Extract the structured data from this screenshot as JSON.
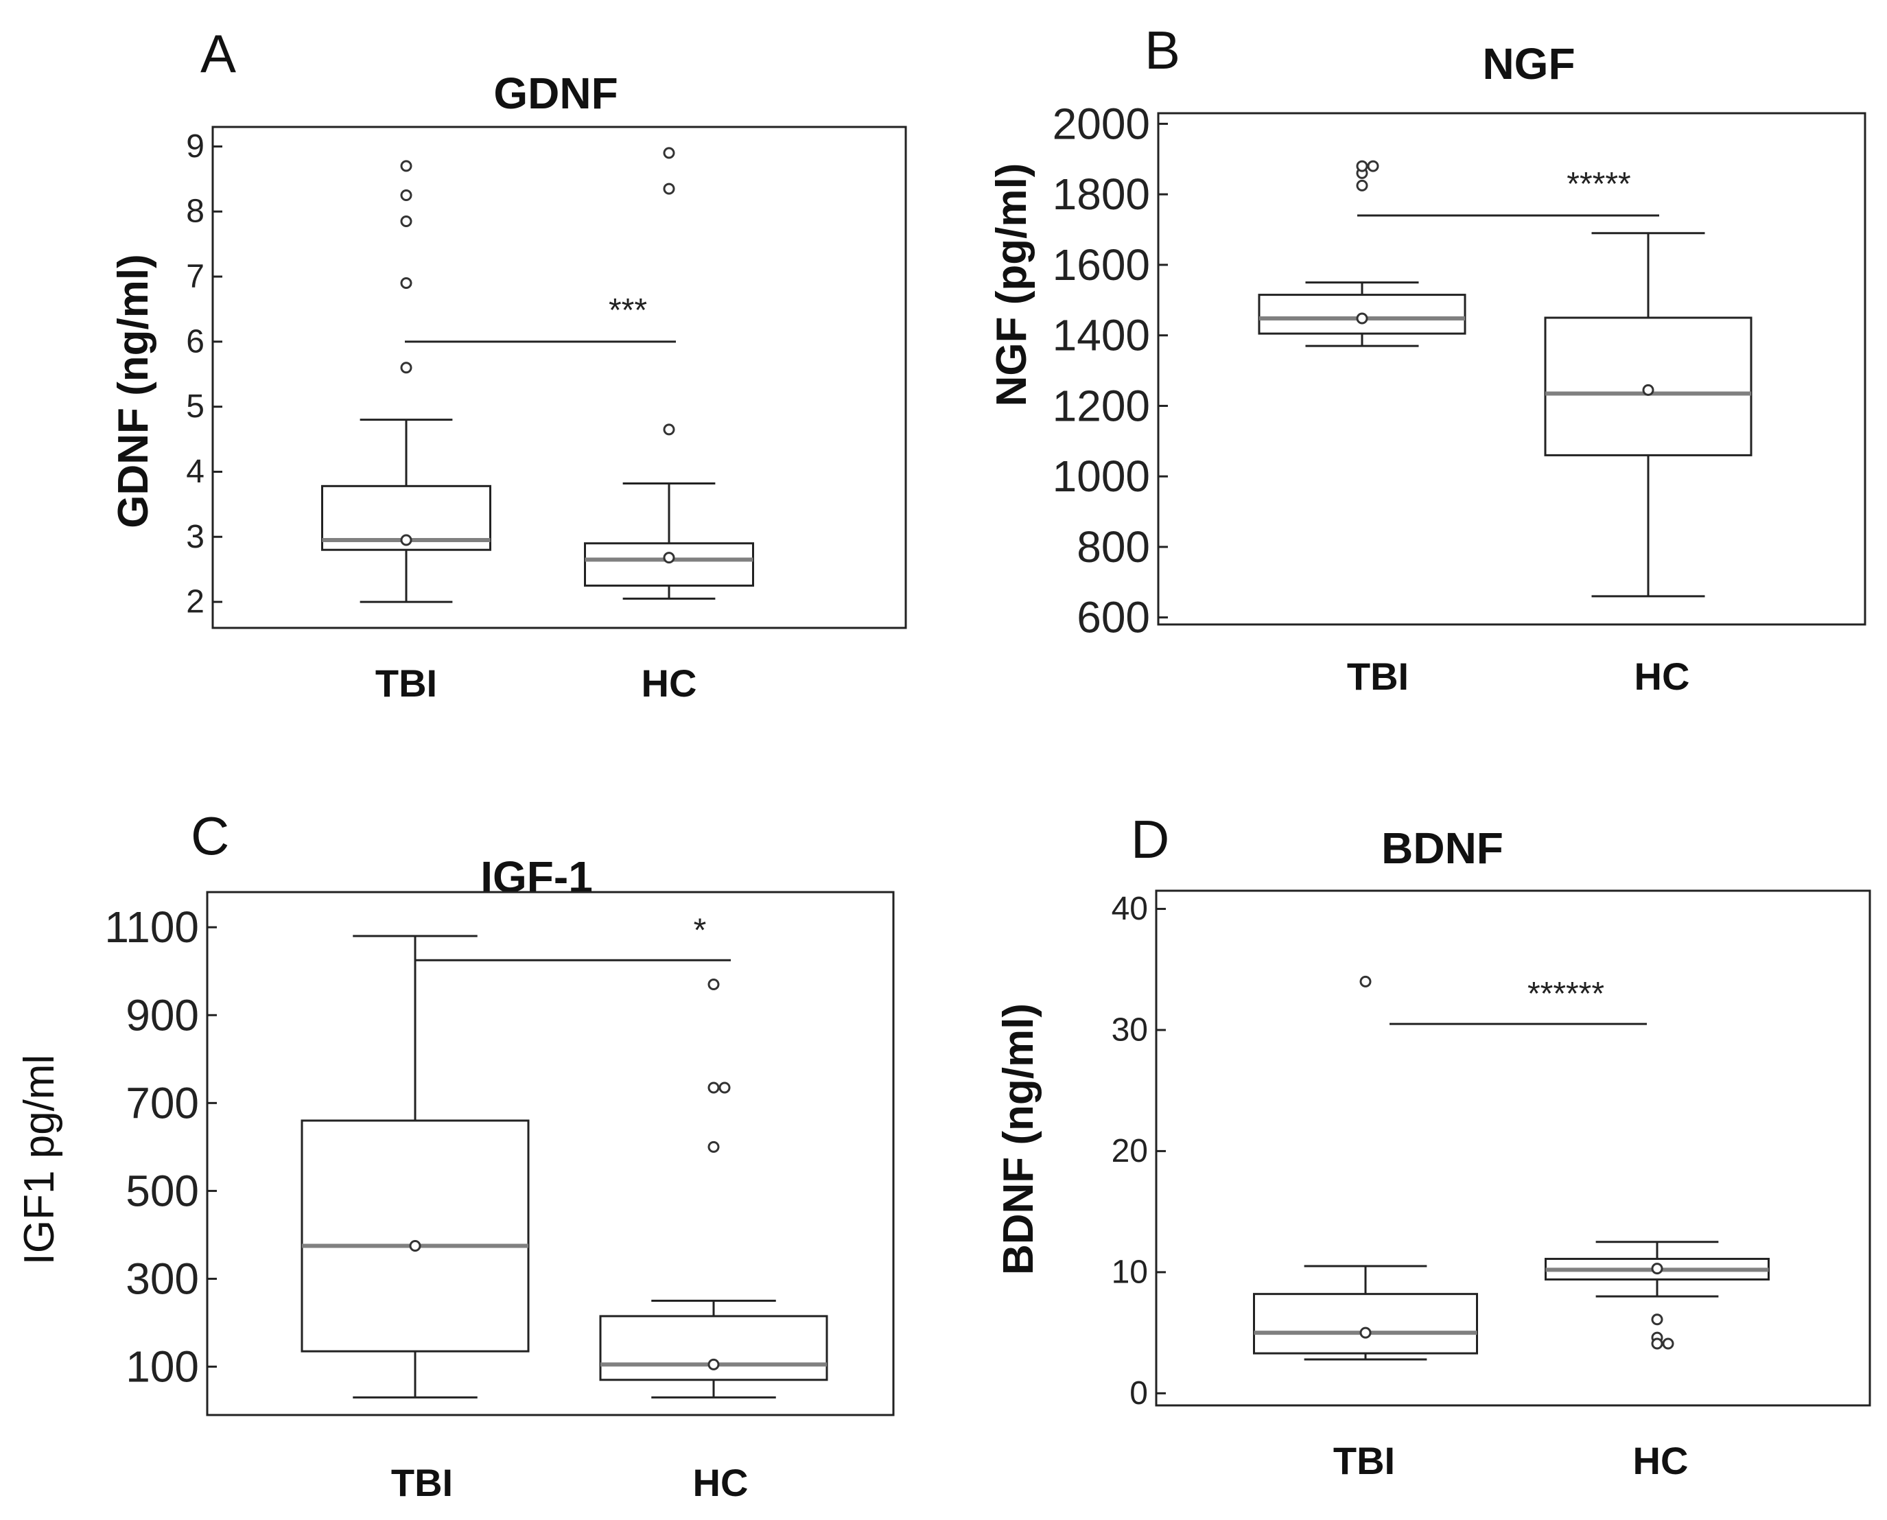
{
  "figure": {
    "panels": [
      "A",
      "B",
      "C",
      "D"
    ]
  },
  "chart_data": [
    {
      "panel": "A",
      "type": "box",
      "title": "GDNF",
      "ylabel": "GDNF (ng/ml)",
      "xlabel": "",
      "categories": [
        "TBI",
        "HC"
      ],
      "ylim": [
        1.6,
        9.3
      ],
      "yticks": [
        2,
        3,
        4,
        5,
        6,
        7,
        8,
        9
      ],
      "boxes": [
        {
          "name": "TBI",
          "whisker_low": 2.0,
          "q1": 2.8,
          "median": 2.95,
          "q3": 3.78,
          "whisker_high": 4.8,
          "mean": 2.95,
          "outliers": [
            5.6,
            6.9,
            7.85,
            8.25,
            8.7
          ]
        },
        {
          "name": "HC",
          "whisker_low": 2.05,
          "q1": 2.25,
          "median": 2.65,
          "q3": 2.9,
          "whisker_high": 3.82,
          "mean": 2.68,
          "outliers": [
            4.65,
            8.35,
            8.9
          ]
        }
      ],
      "significance": {
        "label": "***",
        "y": 6.0
      }
    },
    {
      "panel": "B",
      "type": "box",
      "title": "NGF",
      "ylabel": "NGF (pg/ml)",
      "xlabel": "",
      "categories": [
        "TBI",
        "HC"
      ],
      "ylim": [
        580,
        2030
      ],
      "yticks": [
        600,
        800,
        1000,
        1200,
        1400,
        1600,
        1800,
        2000
      ],
      "boxes": [
        {
          "name": "TBI",
          "whisker_low": 1370,
          "q1": 1405,
          "median": 1448,
          "q3": 1515,
          "whisker_high": 1550,
          "mean": 1448,
          "outliers": [
            1825,
            1860,
            1880,
            1880
          ]
        },
        {
          "name": "HC",
          "whisker_low": 660,
          "q1": 1060,
          "median": 1235,
          "q3": 1450,
          "whisker_high": 1690,
          "mean": 1245,
          "outliers": []
        }
      ],
      "significance": {
        "label": "*****",
        "y": 1740
      }
    },
    {
      "panel": "C",
      "type": "box",
      "title": "IGF-1",
      "ylabel": "IGF1   pg/ml",
      "xlabel": "",
      "categories": [
        "TBI",
        "HC"
      ],
      "ylim": [
        -10,
        1180
      ],
      "yticks": [
        100,
        300,
        500,
        700,
        900,
        1100
      ],
      "boxes": [
        {
          "name": "TBI",
          "whisker_low": 30,
          "q1": 135,
          "median": 375,
          "q3": 660,
          "whisker_high": 1080,
          "mean": 375,
          "outliers": []
        },
        {
          "name": "HC",
          "whisker_low": 30,
          "q1": 70,
          "median": 105,
          "q3": 215,
          "whisker_high": 250,
          "mean": 105,
          "outliers": [
            600,
            735,
            735,
            970
          ]
        }
      ],
      "significance": {
        "label": "*",
        "y": 1025
      }
    },
    {
      "panel": "D",
      "type": "box",
      "title": "BDNF",
      "ylabel": "BDNF (ng/ml)",
      "xlabel": "",
      "categories": [
        "TBI",
        "HC"
      ],
      "ylim": [
        -1,
        41.5
      ],
      "yticks": [
        0,
        10,
        20,
        30,
        40
      ],
      "boxes": [
        {
          "name": "TBI",
          "whisker_low": 2.8,
          "q1": 3.3,
          "median": 5.0,
          "q3": 8.2,
          "whisker_high": 10.5,
          "mean": 5.0,
          "outliers": [
            34.0
          ]
        },
        {
          "name": "HC",
          "whisker_low": 8.0,
          "q1": 9.4,
          "median": 10.2,
          "q3": 11.1,
          "whisker_high": 12.5,
          "mean": 10.3,
          "outliers": [
            6.1,
            4.6,
            4.1,
            4.1
          ]
        }
      ],
      "significance": {
        "label": "******",
        "y": 30.5
      }
    }
  ]
}
